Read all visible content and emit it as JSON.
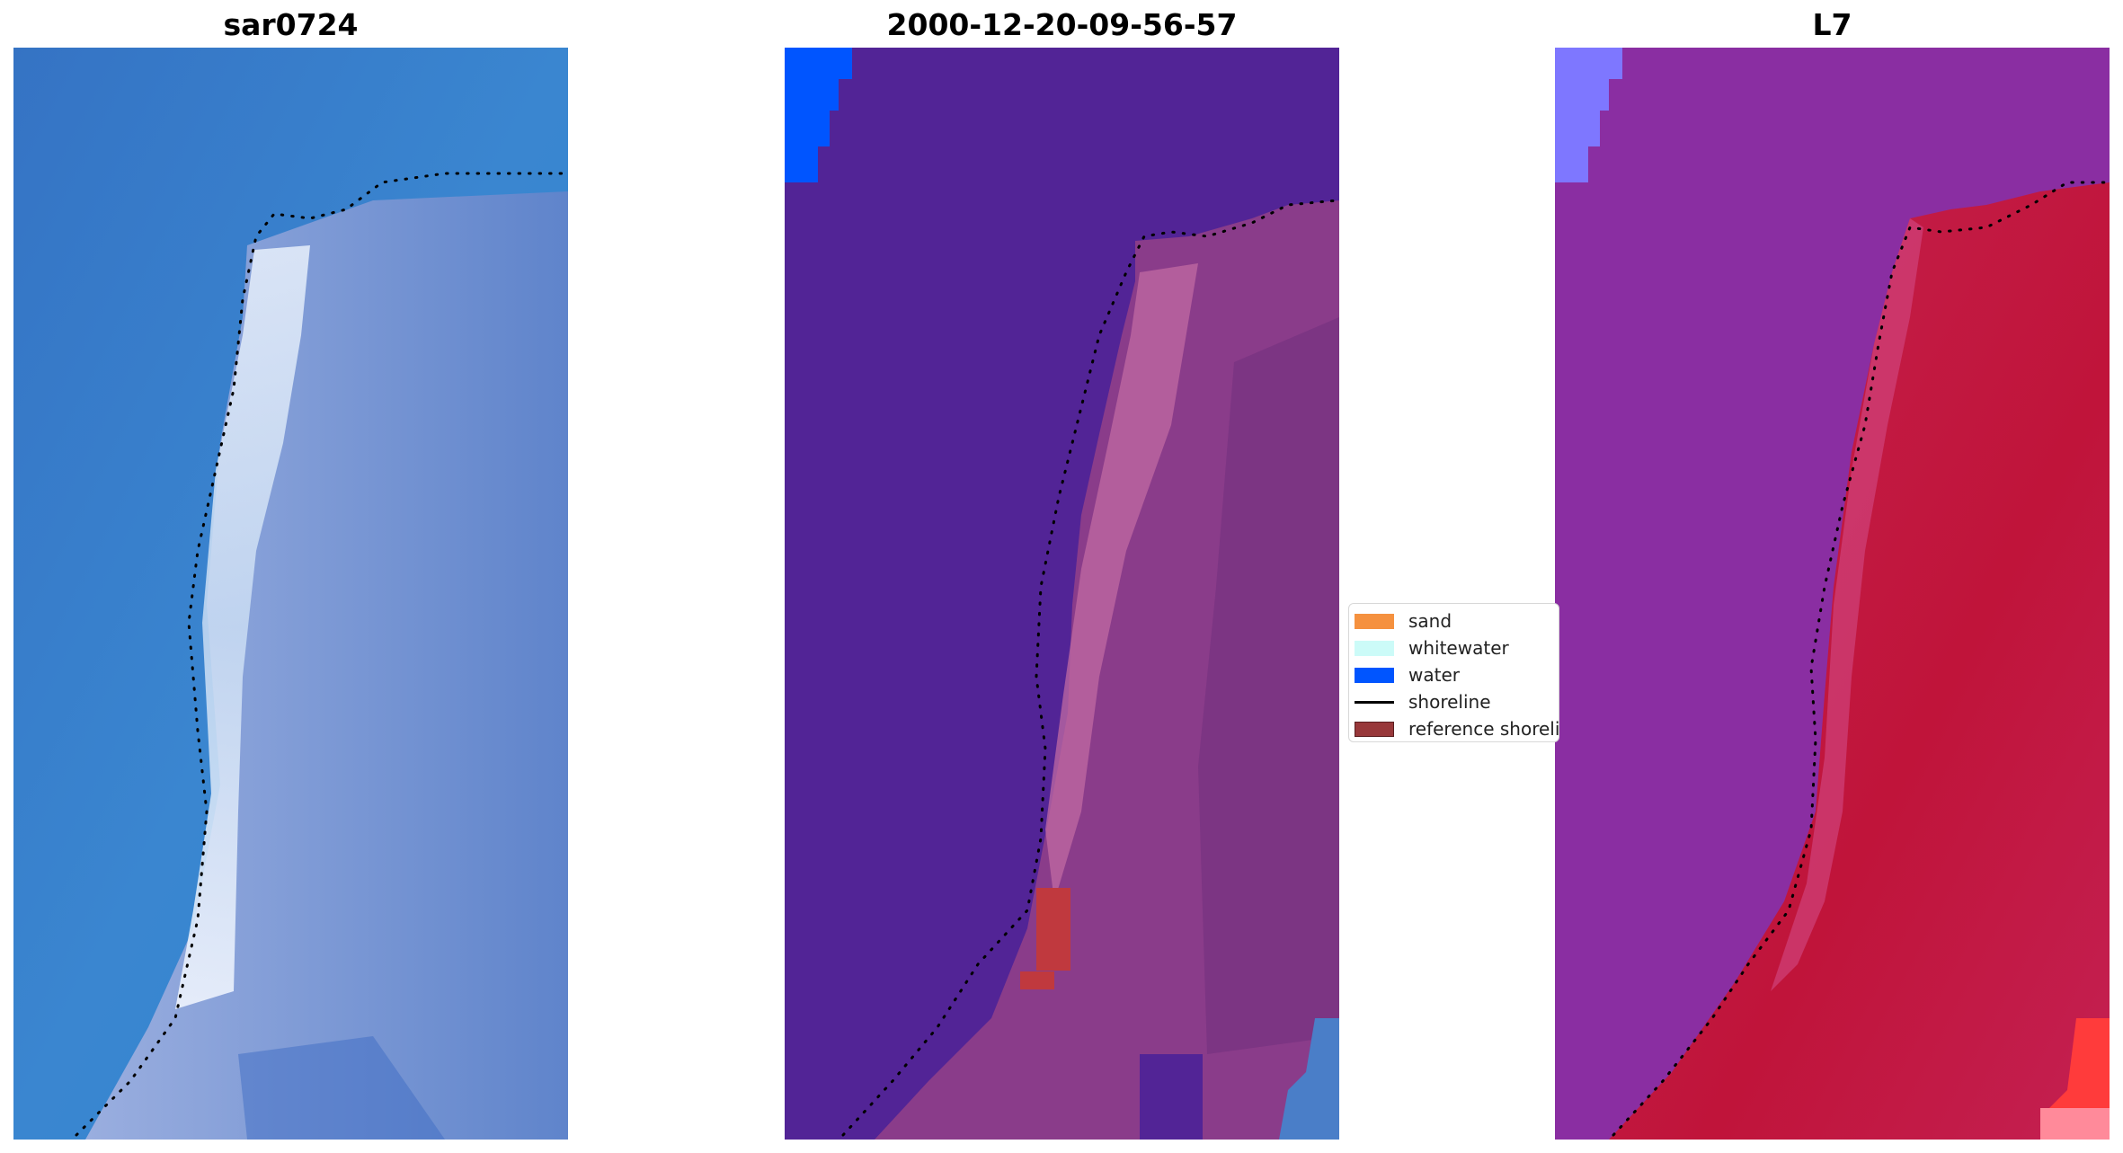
{
  "panels": [
    {
      "title": "sar0724"
    },
    {
      "title": "2000-12-20-09-56-57"
    },
    {
      "title": "L7"
    }
  ],
  "legend": {
    "items": [
      {
        "label": "sand",
        "color": "#f5913f",
        "kind": "patch"
      },
      {
        "label": "whitewater",
        "color": "#ccfbf8",
        "kind": "patch"
      },
      {
        "label": "water",
        "color": "#0055ff",
        "kind": "patch"
      },
      {
        "label": "shoreline",
        "color": "#000000",
        "kind": "line"
      },
      {
        "label": "reference shoreline",
        "color": "#98383a",
        "kind": "patch"
      }
    ]
  },
  "colors": {
    "rgb_water": "#3a7ec8",
    "rgb_land": "#7c8ed0",
    "class_background": "#522496",
    "class_land": "#8a3c8a",
    "class_water": "#0055ff",
    "class_reference": "#c0393e",
    "nir_water": "#8830a2",
    "nir_land": "#c11f48",
    "nir_water_pixel": "#7e77ff"
  }
}
